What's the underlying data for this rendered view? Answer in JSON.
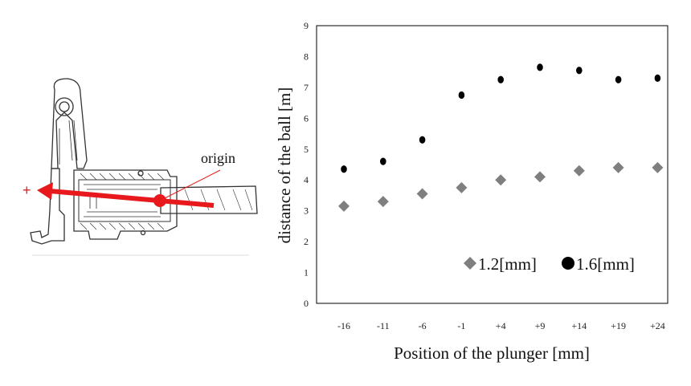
{
  "diagram": {
    "origin_label": "origin",
    "plus_label": "+",
    "arrow_color": "#e8191d"
  },
  "chart_data": {
    "type": "scatter",
    "categories": [
      "-16",
      "-11",
      "-6",
      "-1",
      "+4",
      "+9",
      "+14",
      "+19",
      "+24"
    ],
    "x": [
      -16,
      -11,
      -6,
      -1,
      4,
      9,
      14,
      19,
      24
    ],
    "series": [
      {
        "name": "1.2[mm]",
        "marker": "diamond",
        "color": "#7f7f7f",
        "values": [
          3.15,
          3.3,
          3.55,
          3.75,
          4.0,
          4.1,
          4.3,
          4.4,
          4.4
        ]
      },
      {
        "name": "1.6[mm]",
        "marker": "circle",
        "color": "#000000",
        "values": [
          4.35,
          4.6,
          5.3,
          6.75,
          7.25,
          7.65,
          7.55,
          7.25,
          7.3
        ]
      }
    ],
    "title": "",
    "xlabel": "Position of the plunger [mm]",
    "ylabel": "distance of the ball [m]",
    "ylim": [
      0,
      9
    ],
    "yticks": [
      "0",
      "1",
      "2",
      "3",
      "4",
      "5",
      "6",
      "7",
      "8",
      "9"
    ],
    "grid": false,
    "legend_position": "bottom-right"
  }
}
